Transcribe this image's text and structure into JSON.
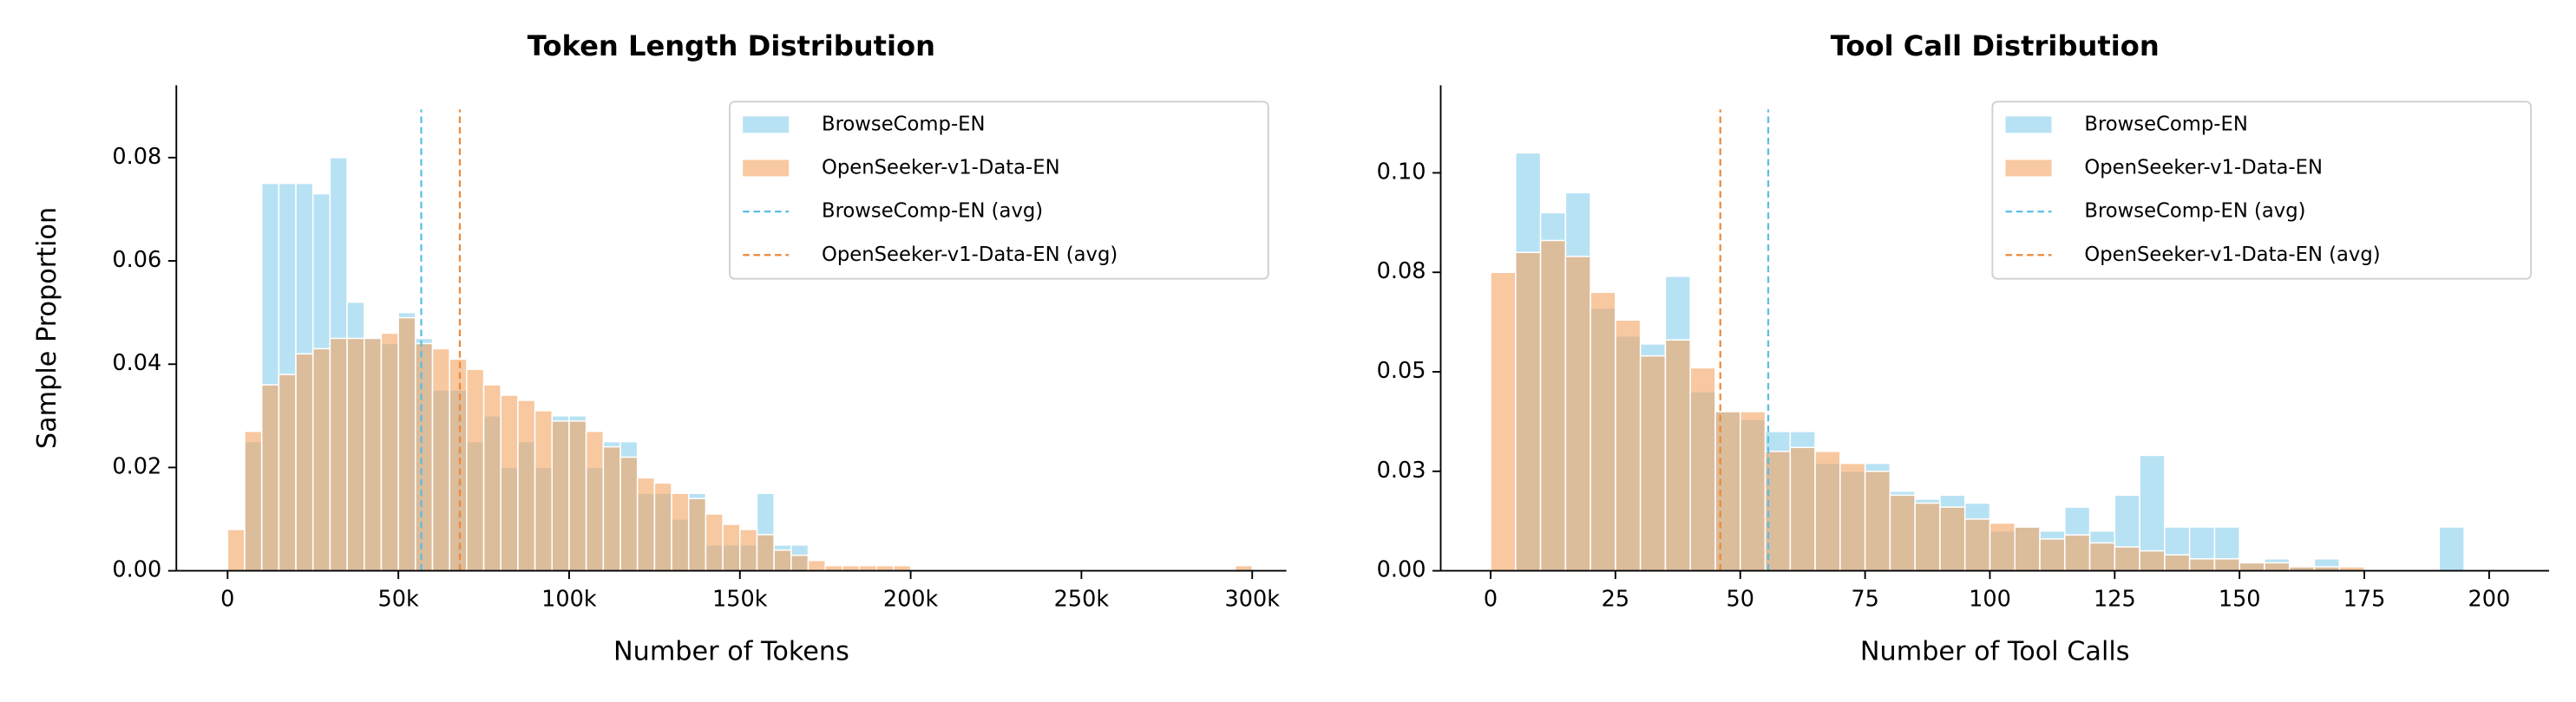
{
  "chart_data": [
    {
      "type": "histogram",
      "title": "Token Length Distribution",
      "xlabel": "Number of Tokens",
      "ylabel": "Sample Proportion",
      "bins": [
        0,
        5000,
        10000,
        15000,
        20000,
        25000,
        30000,
        35000,
        40000,
        45000,
        50000,
        55000,
        60000,
        65000,
        70000,
        75000,
        80000,
        85000,
        90000,
        95000,
        100000,
        105000,
        110000,
        115000,
        120000,
        125000,
        130000,
        135000,
        140000,
        145000,
        150000,
        155000,
        160000,
        165000,
        170000,
        175000,
        180000,
        185000,
        190000,
        195000,
        200000,
        205000,
        210000,
        215000,
        220000,
        225000,
        230000,
        235000,
        240000,
        245000,
        250000,
        255000,
        260000,
        265000,
        270000,
        275000,
        280000,
        285000,
        290000,
        295000,
        300000
      ],
      "series": [
        {
          "name": "BrowseComp-EN",
          "color": "#87ceeb",
          "avg_label": "BrowseComp-EN (avg)",
          "avg_color": "#5bbfe0",
          "avg": 56700,
          "values": [
            0,
            0.025,
            0.075,
            0.075,
            0.075,
            0.073,
            0.08,
            0.052,
            0.045,
            0.044,
            0.05,
            0.045,
            0.035,
            0.035,
            0.025,
            0.03,
            0.02,
            0.025,
            0.02,
            0.03,
            0.03,
            0.02,
            0.025,
            0.025,
            0.015,
            0.015,
            0.01,
            0.015,
            0.005,
            0.005,
            0.005,
            0.015,
            0.005,
            0.005,
            0,
            0,
            0,
            0,
            0,
            0,
            0,
            0,
            0,
            0,
            0,
            0,
            0,
            0,
            0,
            0,
            0,
            0,
            0,
            0,
            0,
            0,
            0,
            0,
            0,
            0
          ]
        },
        {
          "name": "OpenSeeker-v1-Data-EN",
          "color": "#f4a460",
          "avg_label": "OpenSeeker-v1-Data-EN (avg)",
          "avg_color": "#ec8a3c",
          "avg": 68000,
          "values": [
            0.008,
            0.027,
            0.036,
            0.038,
            0.042,
            0.043,
            0.045,
            0.045,
            0.045,
            0.046,
            0.049,
            0.044,
            0.043,
            0.041,
            0.039,
            0.036,
            0.034,
            0.033,
            0.031,
            0.029,
            0.029,
            0.027,
            0.024,
            0.022,
            0.018,
            0.017,
            0.015,
            0.014,
            0.011,
            0.009,
            0.008,
            0.007,
            0.004,
            0.003,
            0.002,
            0.001,
            0.001,
            0.001,
            0.001,
            0.001,
            0,
            0,
            0,
            0,
            0,
            0,
            0,
            0,
            0,
            0,
            0,
            0,
            0,
            0,
            0,
            0,
            0,
            0,
            0,
            0.001
          ]
        }
      ],
      "xlim": [
        -15000,
        310000
      ],
      "ylim": [
        0,
        0.094
      ],
      "xticks": [
        0,
        {
          "value": 50000,
          "label": "50k"
        },
        {
          "value": 100000,
          "label": "100k"
        },
        {
          "value": 150000,
          "label": "150k"
        },
        {
          "value": 200000,
          "label": "200k"
        },
        {
          "value": 250000,
          "label": "250k"
        },
        {
          "value": 300000,
          "label": "300k"
        }
      ],
      "yticks": [
        {
          "value": 0,
          "label": "0.00"
        },
        0.02,
        0.04,
        0.06,
        0.08
      ],
      "legend": "upper right"
    },
    {
      "type": "histogram",
      "title": "Tool Call Distribution",
      "xlabel": "Number of Tool Calls",
      "bins": [
        0,
        5,
        10,
        15,
        20,
        25,
        30,
        35,
        40,
        45,
        50,
        55,
        60,
        65,
        70,
        75,
        80,
        85,
        90,
        95,
        100,
        105,
        110,
        115,
        120,
        125,
        130,
        135,
        140,
        145,
        150,
        155,
        160,
        165,
        170,
        175,
        180,
        185,
        190,
        195,
        200
      ],
      "series": [
        {
          "name": "BrowseComp-EN",
          "color": "#87ceeb",
          "avg_label": "BrowseComp-EN (avg)",
          "avg_color": "#5bbfe0",
          "avg": 55.6,
          "values": [
            0,
            0.105,
            0.09,
            0.095,
            0.066,
            0.059,
            0.057,
            0.074,
            0.045,
            0.04,
            0.038,
            0.035,
            0.035,
            0.027,
            0.025,
            0.027,
            0.02,
            0.018,
            0.019,
            0.017,
            0.01,
            0.011,
            0.01,
            0.016,
            0.01,
            0.019,
            0.029,
            0.011,
            0.011,
            0.011,
            0.002,
            0.003,
            0.001,
            0.003,
            0,
            0,
            0,
            0,
            0.011,
            0
          ]
        },
        {
          "name": "OpenSeeker-v1-Data-EN",
          "color": "#f4a460",
          "avg_label": "OpenSeeker-v1-Data-EN (avg)",
          "avg_color": "#ec8a3c",
          "avg": 46,
          "values": [
            0.075,
            0.08,
            0.083,
            0.079,
            0.07,
            0.063,
            0.054,
            0.058,
            0.051,
            0.04,
            0.04,
            0.03,
            0.031,
            0.03,
            0.027,
            0.025,
            0.019,
            0.017,
            0.016,
            0.013,
            0.012,
            0.011,
            0.008,
            0.009,
            0.007,
            0.006,
            0.005,
            0.004,
            0.003,
            0.003,
            0.002,
            0.002,
            0.001,
            0.001,
            0.001,
            0,
            0,
            0,
            0,
            0
          ]
        }
      ],
      "xlim": [
        -10,
        212
      ],
      "ylim": [
        0,
        0.122
      ],
      "xticks": [
        0,
        25,
        50,
        75,
        100,
        125,
        150,
        175,
        200
      ],
      "yticks": [
        {
          "value": 0,
          "label": "0.00"
        },
        {
          "value": 0.025,
          "label": "0.03"
        },
        0.05,
        {
          "value": 0.075,
          "label": "0.08"
        },
        {
          "value": 0.1,
          "label": "0.10"
        }
      ],
      "legend": "upper right"
    }
  ]
}
